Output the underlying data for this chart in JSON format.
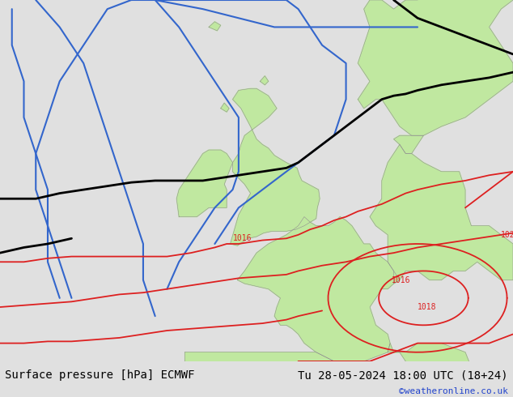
{
  "title_left": "Surface pressure [hPa] ECMWF",
  "title_right": "Tu 28-05-2024 18:00 UTC (18+24)",
  "copyright": "©weatheronline.co.uk",
  "title_fontsize": 10,
  "copyright_fontsize": 8,
  "fig_width": 6.34,
  "fig_height": 4.9,
  "dpi": 100,
  "bg_color": "#e0e0e0",
  "sea_color": "#d8d8d8",
  "land_green": "#c0e8a0",
  "land_gray": "#c0c0c0",
  "border_color": "#909090",
  "blue_color": "#3366cc",
  "black_color": "#000000",
  "red_color": "#dd2020"
}
